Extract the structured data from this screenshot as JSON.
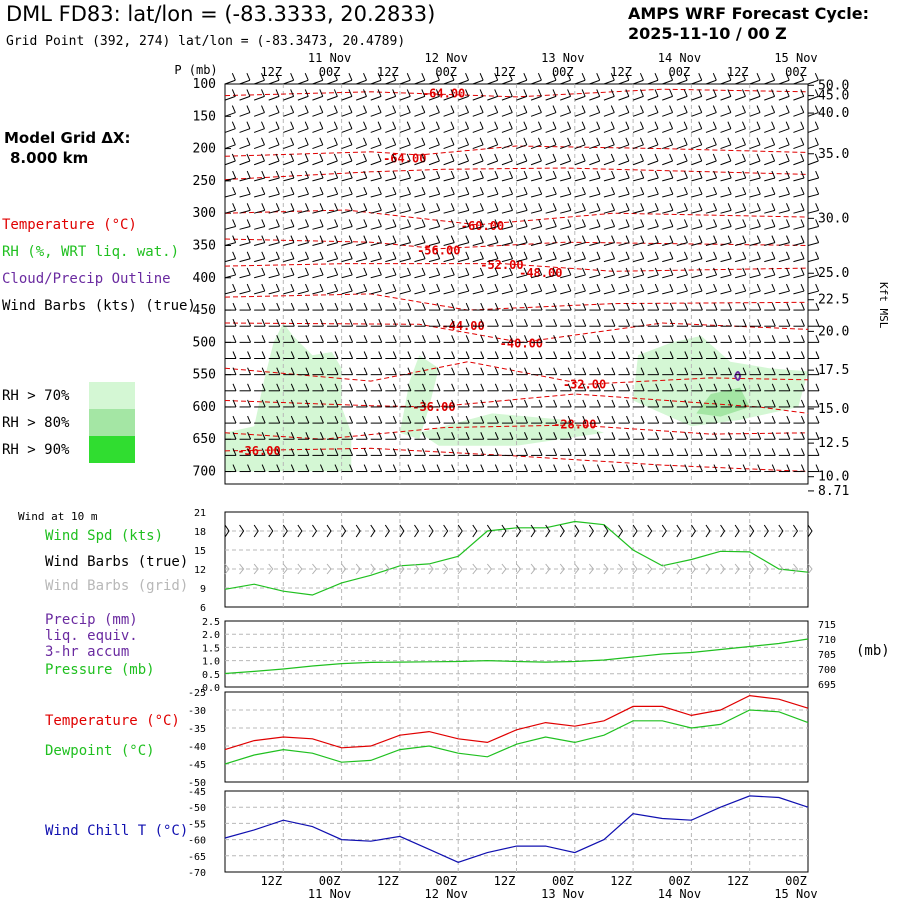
{
  "header": {
    "title": "DML FD83:  lat/lon = (-83.3333, 20.2833)",
    "grid_point": "Grid Point (392, 274) lat/lon = (-83.3473, 20.4789)",
    "cycle_line1": "AMPS WRF Forecast Cycle:",
    "cycle_line2": "2025-11-10 / 00  Z",
    "grid_dx_label": "Model Grid ΔX:",
    "grid_dx_value": "8.000 km"
  },
  "colors": {
    "temperature": "#e00000",
    "rh": "#20c020",
    "cloud": "#6a2aa0",
    "wind": "#000000",
    "wind_grid": "#b0b0b0",
    "pressure": "#20c020",
    "dewpoint": "#20c020",
    "windchill": "#1010b0",
    "rh70": "#d4f7d4",
    "rh80": "#a4e6a4",
    "rh90": "#30dd30"
  },
  "legend": {
    "temperature": "Temperature (°C)",
    "rh": "RH (%, WRT liq. wat.)",
    "cloud": "Cloud/Precip Outline",
    "wind": "Wind Barbs (kts) (true)",
    "rh70": "RH > 70%",
    "rh80": "RH > 80%",
    "rh90": "RH > 90%"
  },
  "time_axis": {
    "top_hours": [
      "12Z",
      "00Z",
      "12Z",
      "00Z",
      "12Z",
      "00Z",
      "12Z",
      "00Z",
      "12Z",
      "00Z"
    ],
    "dates": [
      "11 Nov",
      "12 Nov",
      "13 Nov",
      "14 Nov",
      "15 Nov"
    ]
  },
  "chart_data": [
    {
      "type": "contour",
      "name": "cross-section",
      "ylabel": "P (mb)",
      "y_ticks": [
        100,
        150,
        200,
        250,
        300,
        350,
        400,
        450,
        500,
        550,
        600,
        650,
        700
      ],
      "ylim": [
        100,
        710
      ],
      "xlim_hours": [
        0,
        120
      ],
      "right_axis_label": "Kft MSL",
      "right_ticks": [
        "50.0",
        "45.0",
        "40.0",
        "35.0",
        "30.0",
        "25.0",
        "22.5",
        "20.0",
        "17.5",
        "15.0",
        "12.5",
        "10.0",
        "8.71"
      ],
      "right_tick_pressures": [
        102,
        118,
        145,
        208,
        308,
        393,
        434,
        483,
        543,
        603,
        656,
        708,
        730
      ],
      "temperature_labels": [
        {
          "text": "-64.00",
          "hour": 45,
          "p": 115
        },
        {
          "text": "-64.00",
          "hour": 37,
          "p": 215
        },
        {
          "text": "-60.00",
          "hour": 53,
          "p": 320
        },
        {
          "text": "-56.00",
          "hour": 44,
          "p": 358
        },
        {
          "text": "-52.00",
          "hour": 57,
          "p": 380
        },
        {
          "text": "-48.00",
          "hour": 65,
          "p": 393
        },
        {
          "text": "-44.00",
          "hour": 49,
          "p": 475
        },
        {
          "text": "-40.00",
          "hour": 61,
          "p": 502
        },
        {
          "text": "-36.00",
          "hour": 43,
          "p": 600
        },
        {
          "text": "-36.00",
          "hour": 7,
          "p": 668
        },
        {
          "text": "-32.00",
          "hour": 74,
          "p": 565
        },
        {
          "text": "-28.00",
          "hour": 72,
          "p": 627
        }
      ]
    },
    {
      "type": "line",
      "name": "wind-10m",
      "title": "Wind at 10 m",
      "series_label": "Wind Spd (kts)",
      "barb_true_label": "Wind Barbs (true)",
      "barb_grid_label": "Wind Barbs (grid)",
      "y_ticks": [
        6,
        9,
        12,
        15,
        18,
        21
      ],
      "ylim": [
        6,
        21
      ],
      "x_hours": [
        0,
        6,
        12,
        18,
        24,
        30,
        36,
        42,
        48,
        54,
        60,
        66,
        72,
        78,
        84,
        90,
        96,
        102,
        108,
        114,
        120
      ],
      "values": [
        8.8,
        9.6,
        8.5,
        7.9,
        9.8,
        11.0,
        12.5,
        12.8,
        14.0,
        18.0,
        18.5,
        18.5,
        19.5,
        19.0,
        15.0,
        12.5,
        13.5,
        14.8,
        14.7,
        12.0,
        11.5
      ]
    },
    {
      "type": "line",
      "name": "precip-pressure",
      "precip_label": "Precip (mm)",
      "precip_sub1": "liq. equiv.",
      "precip_sub2": "3-hr accum",
      "pressure_label": "Pressure (mb)",
      "right_unit": "(mb)",
      "y_ticks_left": [
        "0.0",
        "0.5",
        "1.0",
        "1.5",
        "2.0",
        "2.5"
      ],
      "y_ticks_right": [
        "695",
        "700",
        "705",
        "710",
        "715"
      ],
      "ylim_precip": [
        0,
        2.5
      ],
      "ylim_pressure": [
        694,
        716
      ],
      "x_hours": [
        0,
        6,
        12,
        18,
        24,
        30,
        36,
        42,
        48,
        54,
        60,
        66,
        72,
        78,
        84,
        90,
        96,
        102,
        108,
        114,
        120
      ],
      "pressure": [
        698.5,
        699.2,
        700.0,
        701.0,
        701.8,
        702.2,
        702.3,
        702.4,
        702.5,
        702.8,
        702.5,
        702.3,
        702.5,
        703.0,
        704.0,
        705.0,
        705.5,
        706.5,
        707.5,
        708.5,
        710.0
      ]
    },
    {
      "type": "line",
      "name": "temp-dewpoint",
      "temperature_label": "Temperature (°C)",
      "dewpoint_label": "Dewpoint (°C)",
      "y_ticks": [
        -50,
        -45,
        -40,
        -35,
        -30,
        -25
      ],
      "ylim": [
        -50,
        -25
      ],
      "x_hours": [
        0,
        6,
        12,
        18,
        24,
        30,
        36,
        42,
        48,
        54,
        60,
        66,
        72,
        78,
        84,
        90,
        96,
        102,
        108,
        114,
        120
      ],
      "temperature": [
        -41,
        -38.5,
        -37.5,
        -38,
        -40.5,
        -40,
        -37,
        -36,
        -38,
        -39,
        -35.5,
        -33.5,
        -34.5,
        -33,
        -29,
        -29,
        -31.5,
        -30,
        -26,
        -27,
        -29.5
      ],
      "dewpoint": [
        -45,
        -42.5,
        -41,
        -42,
        -44.5,
        -44,
        -41,
        -40,
        -42,
        -43,
        -39.5,
        -37.5,
        -39,
        -37,
        -33,
        -33,
        -35,
        -34,
        -30,
        -30.5,
        -33.5
      ]
    },
    {
      "type": "line",
      "name": "wind-chill",
      "label": "Wind Chill T (°C)",
      "y_ticks": [
        -70,
        -65,
        -60,
        -55,
        -50,
        -45
      ],
      "ylim": [
        -70,
        -45
      ],
      "x_hours": [
        0,
        6,
        12,
        18,
        24,
        30,
        36,
        42,
        48,
        54,
        60,
        66,
        72,
        78,
        84,
        90,
        96,
        102,
        108,
        114,
        120
      ],
      "values": [
        -59.5,
        -57,
        -54,
        -56,
        -60,
        -60.5,
        -59,
        -63,
        -67,
        -64,
        -62,
        -62,
        -64,
        -60,
        -52,
        -53.5,
        -54,
        -50,
        -46.5,
        -47,
        -50
      ]
    }
  ]
}
